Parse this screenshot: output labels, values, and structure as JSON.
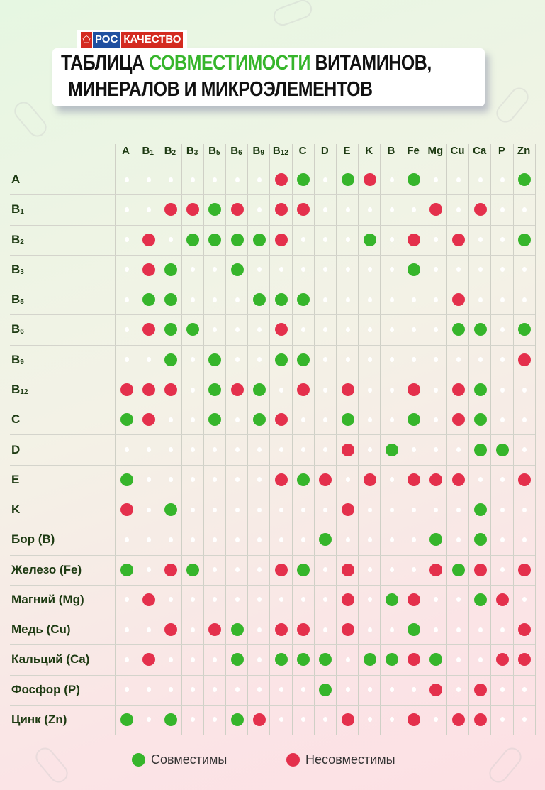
{
  "brand": {
    "logo_left": "РОС",
    "logo_right": "КАЧЕСТВО"
  },
  "title": {
    "line1_start": "ТАБЛИЦА ",
    "line1_highlight": "СОВМЕСТИМОСТИ",
    "line1_end": " ВИТАМИНОВ,",
    "line2": "МИНЕРАЛОВ И МИКРОЭЛЕМЕНТОВ"
  },
  "colors": {
    "compatible": "#36b52b",
    "incompatible": "#e4304c",
    "title_accent": "#36b52b"
  },
  "columns": [
    {
      "base": "A",
      "sub": ""
    },
    {
      "base": "B",
      "sub": "1"
    },
    {
      "base": "B",
      "sub": "2"
    },
    {
      "base": "B",
      "sub": "3"
    },
    {
      "base": "B",
      "sub": "5"
    },
    {
      "base": "B",
      "sub": "6"
    },
    {
      "base": "B",
      "sub": "9"
    },
    {
      "base": "B",
      "sub": "12"
    },
    {
      "base": "C",
      "sub": ""
    },
    {
      "base": "D",
      "sub": ""
    },
    {
      "base": "E",
      "sub": ""
    },
    {
      "base": "K",
      "sub": ""
    },
    {
      "base": "B",
      "sub": ""
    },
    {
      "base": "Fe",
      "sub": ""
    },
    {
      "base": "Mg",
      "sub": ""
    },
    {
      "base": "Cu",
      "sub": ""
    },
    {
      "base": "Ca",
      "sub": ""
    },
    {
      "base": "P",
      "sub": ""
    },
    {
      "base": "Zn",
      "sub": ""
    }
  ],
  "cell_legend": {
    "g": "compatible",
    "r": "incompatible",
    ".": "none"
  },
  "rows": [
    {
      "base": "A",
      "sub": "",
      "cells": ".......rg.gr.g....g"
    },
    {
      "base": "B",
      "sub": "1",
      "cells": "..rrgr.rr.....r.r.."
    },
    {
      "base": "B",
      "sub": "2",
      "cells": ".r.ggggr...g.r.r..g"
    },
    {
      "base": "B",
      "sub": "3",
      "cells": ".rg..g.......g....."
    },
    {
      "base": "B",
      "sub": "5",
      "cells": ".gg...ggg......r..."
    },
    {
      "base": "B",
      "sub": "6",
      "cells": ".rgg...r.......gg.g"
    },
    {
      "base": "B",
      "sub": "9",
      "cells": "..g.g..gg.........r"
    },
    {
      "base": "B",
      "sub": "12",
      "cells": "rrr.grg.r.r..r.rg.."
    },
    {
      "base": "C",
      "sub": "",
      "cells": "gr..g.gr..g..g.rg.."
    },
    {
      "base": "D",
      "sub": "",
      "cells": "..........r.g...gg."
    },
    {
      "base": "E",
      "sub": "",
      "cells": "g......rgr.r.rrr..r"
    },
    {
      "base": "K",
      "sub": "",
      "cells": "r.g.......r.....g.."
    },
    {
      "base": "Бор (B)",
      "sub": "",
      "cells": ".........g....g.g.."
    },
    {
      "base": "Железо (Fe)",
      "sub": "",
      "cells": "g.rg...rg.r...rgr.r"
    },
    {
      "base": "Магний (Mg)",
      "sub": "",
      "cells": ".r........r.gr..gr."
    },
    {
      "base": "Медь (Cu)",
      "sub": "",
      "cells": "..r.rg.rr.r..g....r"
    },
    {
      "base": "Кальций (Ca)",
      "sub": "",
      "cells": ".r...g.ggg.ggrg..rr"
    },
    {
      "base": "Фосфор (P)",
      "sub": "",
      "cells": ".........g....r.r.."
    },
    {
      "base": "Цинк (Zn)",
      "sub": "",
      "cells": "g.g..gr...r..r.rr.."
    }
  ],
  "legend": {
    "compatible": "Совместимы",
    "incompatible": "Несовместимы"
  }
}
